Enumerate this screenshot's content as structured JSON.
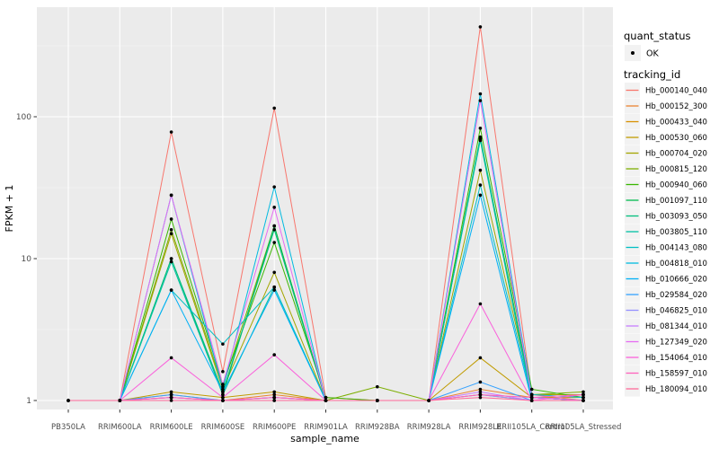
{
  "chart_data": {
    "type": "line",
    "title": "",
    "xlabel": "sample_name",
    "ylabel": "FPKM + 1",
    "y_scale": "log10",
    "y_ticks": [
      "1",
      "10",
      "100"
    ],
    "y_tick_values": [
      1,
      10,
      100
    ],
    "y_minor_values": [
      3.162,
      31.62,
      316.2
    ],
    "ylim_log": [
      -0.07,
      2.77
    ],
    "grid": "on",
    "legend_position": "right",
    "panel_bg": "#EBEBEB",
    "grid_major_color": "#FFFFFF",
    "grid_minor_color": "#F5F5F5",
    "tick_color": "#333333",
    "tick_label_color": "#4D4D4D",
    "axis_title_color": "#000000",
    "point_color": "#000000",
    "legend_key_bg": "#F2F2F2",
    "categories": [
      "PB350LA",
      "RRIM600LA",
      "RRIM600LE",
      "RRIM600SE",
      "RRIM600PE",
      "RRIM901LA",
      "RRIM928BA",
      "RRIM928LA",
      "RRIM928LE",
      "RRII105LA_Control",
      "RRII105LA_Stressed"
    ],
    "legend": {
      "quant_status_title": "quant_status",
      "quant_status_items": [
        {
          "label": "OK",
          "marker": "point-icon",
          "color": "#000000"
        }
      ],
      "tracking_id_title": "tracking_id"
    },
    "series": [
      {
        "name": "Hb_000140_040",
        "color": "#F8766D",
        "values": [
          1,
          1,
          78,
          1.6,
          115,
          1.05,
          1,
          1,
          430,
          1.1,
          1
        ]
      },
      {
        "name": "Hb_000152_300",
        "color": "#EA8331",
        "values": [
          1,
          1,
          1.1,
          1,
          1.1,
          1,
          1,
          1,
          1.2,
          1.05,
          1
        ]
      },
      {
        "name": "Hb_000433_040",
        "color": "#D89000",
        "values": [
          1,
          1,
          1.05,
          1,
          1.05,
          1,
          1,
          1,
          1.1,
          1,
          1
        ]
      },
      {
        "name": "Hb_000530_060",
        "color": "#C09B00",
        "values": [
          1,
          1,
          1.15,
          1.05,
          1.15,
          1,
          1,
          1,
          2.0,
          1.05,
          1.05
        ]
      },
      {
        "name": "Hb_000704_020",
        "color": "#A3A500",
        "values": [
          1,
          1,
          15,
          1.2,
          8,
          1,
          1,
          1,
          42,
          1.1,
          1.1
        ]
      },
      {
        "name": "Hb_000815_120",
        "color": "#7CAE00",
        "values": [
          1,
          1,
          16,
          1.25,
          17,
          1,
          1.25,
          1,
          70,
          1.1,
          1.15
        ]
      },
      {
        "name": "Hb_000940_060",
        "color": "#39B600",
        "values": [
          1,
          1,
          19,
          1.3,
          13,
          1.05,
          1,
          1,
          83,
          1.2,
          1.05
        ]
      },
      {
        "name": "Hb_001097_110",
        "color": "#00BB4E",
        "values": [
          1,
          1,
          10,
          1.1,
          17,
          1,
          1,
          1,
          70,
          1.05,
          1
        ]
      },
      {
        "name": "Hb_003093_050",
        "color": "#00BF7D",
        "values": [
          1,
          1,
          10,
          1.15,
          16,
          1,
          1,
          1,
          72,
          1.05,
          1
        ]
      },
      {
        "name": "Hb_003805_110",
        "color": "#00C1A3",
        "values": [
          1,
          1,
          9.5,
          1.1,
          6.3,
          1,
          1,
          1,
          68,
          1,
          1
        ]
      },
      {
        "name": "Hb_004143_080",
        "color": "#00BFC4",
        "values": [
          1,
          1,
          6,
          2.5,
          6.3,
          1,
          1,
          1,
          33,
          1.05,
          1
        ]
      },
      {
        "name": "Hb_004818_010",
        "color": "#00BAE0",
        "values": [
          1,
          1,
          28,
          1.2,
          32,
          1,
          1,
          1,
          145,
          1.1,
          1.05
        ]
      },
      {
        "name": "Hb_010666_020",
        "color": "#00B0F6",
        "values": [
          1,
          1,
          6,
          1.15,
          6,
          1,
          1,
          1,
          28,
          1,
          1
        ]
      },
      {
        "name": "Hb_029584_020",
        "color": "#35A2FF",
        "values": [
          1,
          1,
          1.1,
          1,
          1.05,
          1,
          1,
          1,
          1.35,
          1,
          1
        ]
      },
      {
        "name": "Hb_046825_010",
        "color": "#9590FF",
        "values": [
          1,
          1,
          1.05,
          1,
          1,
          1,
          1,
          1,
          1.1,
          1,
          1
        ]
      },
      {
        "name": "Hb_081344_010",
        "color": "#C77CFF",
        "values": [
          1,
          1,
          1.05,
          1,
          1.05,
          1,
          1,
          1,
          1.15,
          1,
          1
        ]
      },
      {
        "name": "Hb_127349_020",
        "color": "#E76BF3",
        "values": [
          1,
          1,
          28,
          1.3,
          23,
          1,
          1,
          1,
          130,
          1.05,
          1
        ]
      },
      {
        "name": "Hb_154064_010",
        "color": "#FA62DB",
        "values": [
          1,
          1,
          2.0,
          1.05,
          2.1,
          1,
          1,
          1,
          4.8,
          1,
          1.1
        ]
      },
      {
        "name": "Hb_158597_010",
        "color": "#FF62BC",
        "values": [
          1,
          1,
          1.05,
          1,
          1.05,
          1,
          1,
          1,
          1.1,
          1.05,
          1.1
        ]
      },
      {
        "name": "Hb_180094_010",
        "color": "#FF6A98",
        "values": [
          1,
          1,
          1,
          1,
          1,
          1,
          1,
          1,
          1.05,
          1,
          1
        ]
      }
    ]
  }
}
